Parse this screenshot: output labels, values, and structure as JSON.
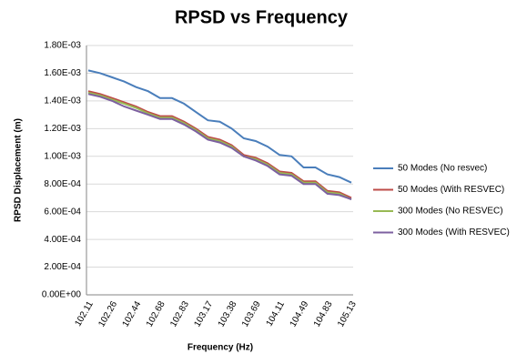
{
  "chart_data": {
    "type": "line",
    "title": "RPSD vs Frequency",
    "x_label": "Frequency (Hz)",
    "y_label": "RPSD Displacement (m)",
    "categories": [
      "102.11",
      null,
      "102.26",
      null,
      "102.44",
      null,
      "102.68",
      null,
      "102.83",
      null,
      "103.17",
      null,
      "103.38",
      null,
      "103.69",
      null,
      "104.11",
      null,
      "104.49",
      null,
      "104.83",
      null,
      "105.13"
    ],
    "series": [
      {
        "name": "50 Modes (No resvec)",
        "color": "#4a7ebb",
        "values": [
          0.00162,
          0.0016,
          0.00157,
          0.00154,
          0.0015,
          0.00147,
          0.00142,
          0.00142,
          0.00138,
          0.00132,
          0.00126,
          0.00125,
          0.0012,
          0.00113,
          0.00111,
          0.00107,
          0.00101,
          0.001,
          0.00092,
          0.00092,
          0.00087,
          0.00085,
          0.00081
        ]
      },
      {
        "name": "50 Modes (With RESVEC)",
        "color": "#be4b48",
        "values": [
          0.00147,
          0.00145,
          0.00142,
          0.00139,
          0.00136,
          0.00132,
          0.00129,
          0.00129,
          0.00125,
          0.0012,
          0.00114,
          0.00112,
          0.00108,
          0.00101,
          0.00099,
          0.00095,
          0.00089,
          0.00088,
          0.00082,
          0.00082,
          0.00075,
          0.00074,
          0.0007
        ]
      },
      {
        "name": "300 Modes (No RESVEC)",
        "color": "#98b954",
        "values": [
          0.00146,
          0.00144,
          0.00141,
          0.00138,
          0.00135,
          0.00131,
          0.00128,
          0.00128,
          0.00124,
          0.00119,
          0.00113,
          0.00111,
          0.00107,
          0.001,
          0.00098,
          0.00094,
          0.00088,
          0.00087,
          0.00081,
          0.00081,
          0.00074,
          0.00073,
          0.00069
        ]
      },
      {
        "name": "300 Modes (With RESVEC)",
        "color": "#7d60a0",
        "values": [
          0.00145,
          0.00143,
          0.0014,
          0.00136,
          0.00133,
          0.0013,
          0.00127,
          0.00127,
          0.00123,
          0.00118,
          0.00112,
          0.0011,
          0.00106,
          0.001,
          0.00097,
          0.00093,
          0.00087,
          0.00086,
          0.0008,
          0.0008,
          0.00073,
          0.00072,
          0.00069
        ]
      }
    ],
    "ylim": [
      0,
      0.0018
    ],
    "yticks": [
      {
        "value": 0,
        "label": "0.00E+00"
      },
      {
        "value": 0.0002,
        "label": "2.00E-04"
      },
      {
        "value": 0.0004,
        "label": "4.00E-04"
      },
      {
        "value": 0.0006,
        "label": "6.00E-04"
      },
      {
        "value": 0.0008,
        "label": "8.00E-04"
      },
      {
        "value": 0.001,
        "label": "1.00E-03"
      },
      {
        "value": 0.0012,
        "label": "1.20E-03"
      },
      {
        "value": 0.0014,
        "label": "1.40E-03"
      },
      {
        "value": 0.0016,
        "label": "1.60E-03"
      },
      {
        "value": 0.0018,
        "label": "1.80E-03"
      }
    ],
    "grid": true,
    "legend": "right"
  }
}
